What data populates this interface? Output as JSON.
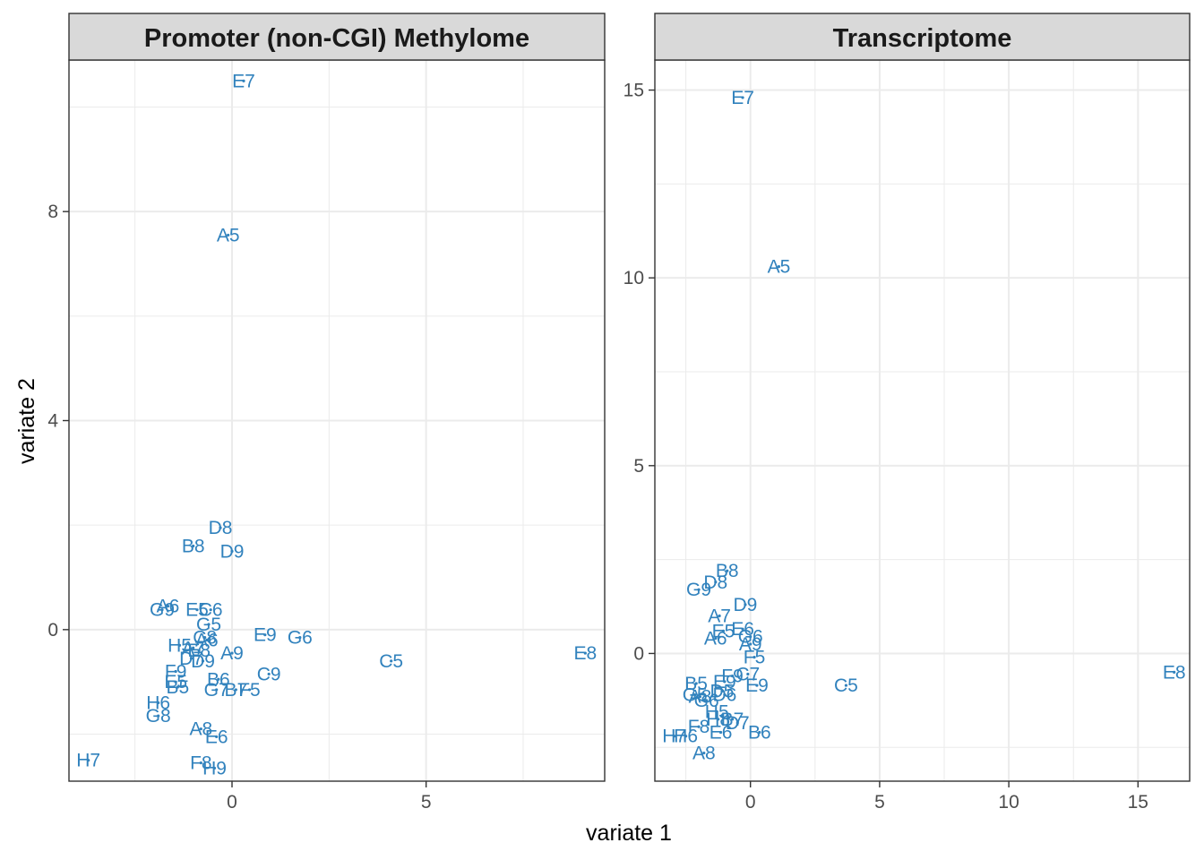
{
  "chart_data": {
    "type": "scatter",
    "xlabel": "variate 1",
    "ylabel": "variate 2",
    "colors": {
      "point": "#3182bd",
      "strip_bg": "#d9d9d9",
      "grid": "#ebebeb",
      "border": "#333333"
    },
    "panels": [
      {
        "title": "Promoter (non-CGI) Methylome",
        "xlim": [
          -4.2,
          9.6
        ],
        "ylim": [
          -2.9,
          10.9
        ],
        "xticks": [
          0,
          5
        ],
        "yticks": [
          0,
          4,
          8
        ],
        "points": [
          {
            "label": "E7",
            "x": 0.3,
            "y": 10.5
          },
          {
            "label": "A5",
            "x": -0.1,
            "y": 7.55
          },
          {
            "label": "D8",
            "x": -0.3,
            "y": 1.95
          },
          {
            "label": "B8",
            "x": -1.0,
            "y": 1.6
          },
          {
            "label": "D9",
            "x": 0.0,
            "y": 1.5
          },
          {
            "label": "A6",
            "x": -1.65,
            "y": 0.45
          },
          {
            "label": "G9",
            "x": -1.8,
            "y": 0.38
          },
          {
            "label": "E5",
            "x": -0.9,
            "y": 0.38
          },
          {
            "label": "C6",
            "x": -0.55,
            "y": 0.38
          },
          {
            "label": "G5",
            "x": -0.6,
            "y": 0.1
          },
          {
            "label": "E9",
            "x": 0.85,
            "y": -0.1
          },
          {
            "label": "G6",
            "x": 1.75,
            "y": -0.15
          },
          {
            "label": "C8",
            "x": -0.7,
            "y": -0.15
          },
          {
            "label": "A6",
            "x": -0.65,
            "y": -0.2
          },
          {
            "label": "H5",
            "x": -1.35,
            "y": -0.3
          },
          {
            "label": "A7",
            "x": -1.0,
            "y": -0.35
          },
          {
            "label": "A9",
            "x": 0.0,
            "y": -0.45
          },
          {
            "label": "E8",
            "x": -0.85,
            "y": -0.4
          },
          {
            "label": "D7",
            "x": -1.05,
            "y": -0.55
          },
          {
            "label": "D9",
            "x": -0.75,
            "y": -0.6
          },
          {
            "label": "C5",
            "x": 4.1,
            "y": -0.6
          },
          {
            "label": "E8",
            "x": 9.1,
            "y": -0.45
          },
          {
            "label": "F9",
            "x": -1.45,
            "y": -0.8
          },
          {
            "label": "E5",
            "x": -1.45,
            "y": -1.0
          },
          {
            "label": "C9",
            "x": 0.95,
            "y": -0.85
          },
          {
            "label": "B6",
            "x": -0.35,
            "y": -0.95
          },
          {
            "label": "B5",
            "x": -1.4,
            "y": -1.1
          },
          {
            "label": "G7",
            "x": -0.4,
            "y": -1.15
          },
          {
            "label": "B7",
            "x": 0.1,
            "y": -1.15
          },
          {
            "label": "F5",
            "x": 0.45,
            "y": -1.15
          },
          {
            "label": "H6",
            "x": -1.9,
            "y": -1.4
          },
          {
            "label": "G8",
            "x": -1.9,
            "y": -1.65
          },
          {
            "label": "A8",
            "x": -0.8,
            "y": -1.9
          },
          {
            "label": "E6",
            "x": -0.4,
            "y": -2.05
          },
          {
            "label": "H7",
            "x": -3.7,
            "y": -2.5
          },
          {
            "label": "F8",
            "x": -0.8,
            "y": -2.55
          },
          {
            "label": "H9",
            "x": -0.45,
            "y": -2.65
          }
        ]
      },
      {
        "title": "Transcriptome",
        "xlim": [
          -3.7,
          17.0
        ],
        "ylim": [
          -3.4,
          15.8
        ],
        "xticks": [
          0,
          5,
          10,
          15
        ],
        "yticks": [
          0,
          5,
          10,
          15
        ],
        "points": [
          {
            "label": "E7",
            "x": -0.3,
            "y": 14.8
          },
          {
            "label": "A5",
            "x": 1.1,
            "y": 10.3
          },
          {
            "label": "B8",
            "x": -0.9,
            "y": 2.2
          },
          {
            "label": "D8",
            "x": -1.35,
            "y": 1.9
          },
          {
            "label": "G9",
            "x": -2.0,
            "y": 1.7
          },
          {
            "label": "D9",
            "x": -0.2,
            "y": 1.3
          },
          {
            "label": "A7",
            "x": -1.2,
            "y": 1.0
          },
          {
            "label": "E5",
            "x": -1.05,
            "y": 0.6
          },
          {
            "label": "E6",
            "x": -0.3,
            "y": 0.65
          },
          {
            "label": "G6",
            "x": 0.0,
            "y": 0.45
          },
          {
            "label": "A6",
            "x": -1.35,
            "y": 0.4
          },
          {
            "label": "A9",
            "x": 0.0,
            "y": 0.25
          },
          {
            "label": "F5",
            "x": 0.15,
            "y": -0.1
          },
          {
            "label": "E8",
            "x": 16.4,
            "y": -0.5
          },
          {
            "label": "C7",
            "x": -0.1,
            "y": -0.55
          },
          {
            "label": "F9",
            "x": -0.7,
            "y": -0.6
          },
          {
            "label": "E9",
            "x": 0.25,
            "y": -0.85
          },
          {
            "label": "C5",
            "x": 3.7,
            "y": -0.85
          },
          {
            "label": "B5",
            "x": -2.1,
            "y": -0.8
          },
          {
            "label": "E9",
            "x": -1.0,
            "y": -0.75
          },
          {
            "label": "D5",
            "x": -1.1,
            "y": -1.0
          },
          {
            "label": "G5",
            "x": -2.15,
            "y": -1.1
          },
          {
            "label": "A8",
            "x": -1.95,
            "y": -1.15
          },
          {
            "label": "D6",
            "x": -1.0,
            "y": -1.1
          },
          {
            "label": "G6",
            "x": -1.7,
            "y": -1.25
          },
          {
            "label": "H5",
            "x": -1.3,
            "y": -1.55
          },
          {
            "label": "H8",
            "x": -1.25,
            "y": -1.75
          },
          {
            "label": "B7",
            "x": -0.7,
            "y": -1.75
          },
          {
            "label": "D7",
            "x": -0.5,
            "y": -1.85
          },
          {
            "label": "F8",
            "x": -2.0,
            "y": -1.95
          },
          {
            "label": "E6",
            "x": -1.15,
            "y": -2.1
          },
          {
            "label": "B6",
            "x": 0.35,
            "y": -2.1
          },
          {
            "label": "H7",
            "x": -2.95,
            "y": -2.2
          },
          {
            "label": "H6",
            "x": -2.5,
            "y": -2.2
          },
          {
            "label": "A8",
            "x": -1.8,
            "y": -2.65
          }
        ]
      }
    ]
  }
}
